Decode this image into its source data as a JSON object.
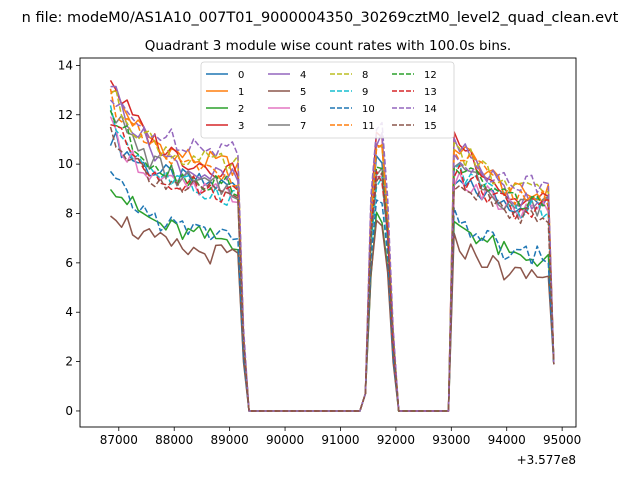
{
  "figure": {
    "suptitle": "n file: modeM0/AS1A10_007T01_9000004350_30269cztM0_level2_quad_clean.evt",
    "offset_label": "+3.577e8"
  },
  "chart_data": {
    "type": "line",
    "title": "Quadrant 3 module wise count rates with 100.0s bins.",
    "xlabel": "",
    "ylabel": "",
    "x_offset": 357700000,
    "xlim": [
      86300,
      95250
    ],
    "ylim": [
      -0.65,
      14.3
    ],
    "xticks": [
      87000,
      88000,
      89000,
      90000,
      91000,
      92000,
      93000,
      94000,
      95000
    ],
    "xtick_labels": [
      "87000",
      "88000",
      "89000",
      "90000",
      "91000",
      "92000",
      "93000",
      "94000",
      "95000"
    ],
    "yticks": [
      0,
      2,
      4,
      6,
      8,
      10,
      12,
      14
    ],
    "ytick_labels": [
      "0",
      "2",
      "4",
      "6",
      "8",
      "10",
      "12",
      "14"
    ],
    "legend": {
      "placement": "top-center",
      "columns": 4
    },
    "segments": [
      {
        "x_start": 86850,
        "x_end": 89150,
        "step": 100
      },
      {
        "x_start": 89250,
        "x_end": 89350,
        "step": 100
      },
      {
        "x_start": 89350,
        "x_end": 91350,
        "step": 2000,
        "flat": 0
      },
      {
        "x_start": 91350,
        "x_end": 91450,
        "step": 100
      },
      {
        "x_start": 91550,
        "x_end": 91850,
        "step": 100
      },
      {
        "x_start": 91950,
        "x_end": 92050,
        "step": 100
      },
      {
        "x_start": 92050,
        "x_end": 92950,
        "step": 900,
        "flat": 0
      },
      {
        "x_start": 93050,
        "x_end": 94750,
        "step": 100
      },
      {
        "x_start": 94850,
        "x_end": 94850,
        "step": 100
      }
    ],
    "series": [
      {
        "name": "0",
        "color": "#1f77b4",
        "dashed": false,
        "base": 9.0,
        "start": 11.2,
        "r2": 9.3,
        "end": 8.4,
        "p": 10.6
      },
      {
        "name": "1",
        "color": "#ff7f0e",
        "dashed": false,
        "base": 9.8,
        "start": 13.2,
        "r2": 10.3,
        "end": 8.8,
        "p": 11.2
      },
      {
        "name": "2",
        "color": "#2ca02c",
        "dashed": false,
        "base": 6.8,
        "start": 9.4,
        "r2": 6.6,
        "end": 6.2,
        "p": 8.3
      },
      {
        "name": "3",
        "color": "#d62728",
        "dashed": false,
        "base": 9.6,
        "start": 13.6,
        "r2": 10.4,
        "end": 8.5,
        "p": 11.5
      },
      {
        "name": "4",
        "color": "#9467bd",
        "dashed": false,
        "base": 9.2,
        "start": 13.4,
        "r2": 9.6,
        "end": 8.6,
        "p": 11.3
      },
      {
        "name": "5",
        "color": "#8c564b",
        "dashed": false,
        "base": 6.2,
        "start": 8.3,
        "r2": 6.0,
        "end": 5.5,
        "p": 7.7
      },
      {
        "name": "6",
        "color": "#e377c2",
        "dashed": false,
        "base": 8.6,
        "start": 11.5,
        "r2": 9.0,
        "end": 8.1,
        "p": 9.8
      },
      {
        "name": "7",
        "color": "#7f7f7f",
        "dashed": false,
        "base": 8.8,
        "start": 12.5,
        "r2": 9.2,
        "end": 8.3,
        "p": 10.2
      },
      {
        "name": "8",
        "color": "#bcbd22",
        "dashed": true,
        "base": 9.8,
        "start": 13.0,
        "r2": 10.3,
        "end": 8.9,
        "p": 11.2
      },
      {
        "name": "9",
        "color": "#17becf",
        "dashed": true,
        "base": 8.6,
        "start": 12.0,
        "r2": 9.0,
        "end": 8.2,
        "p": 9.6
      },
      {
        "name": "10",
        "color": "#1f77b4",
        "dashed": true,
        "base": 7.0,
        "start": 9.5,
        "r2": 6.8,
        "end": 6.3,
        "p": 8.6
      },
      {
        "name": "11",
        "color": "#ff7f0e",
        "dashed": true,
        "base": 9.4,
        "start": 12.8,
        "r2": 9.9,
        "end": 8.7,
        "p": 10.8
      },
      {
        "name": "12",
        "color": "#2ca02c",
        "dashed": true,
        "base": 9.0,
        "start": 12.2,
        "r2": 9.5,
        "end": 8.5,
        "p": 10.4
      },
      {
        "name": "13",
        "color": "#d62728",
        "dashed": true,
        "base": 8.7,
        "start": 11.8,
        "r2": 9.2,
        "end": 8.2,
        "p": 10.0
      },
      {
        "name": "14",
        "color": "#9467bd",
        "dashed": true,
        "base": 10.6,
        "start": 12.6,
        "r2": 11.0,
        "end": 9.2,
        "p": 12.3
      },
      {
        "name": "15",
        "color": "#8c564b",
        "dashed": true,
        "base": 8.6,
        "start": 11.4,
        "r2": 9.0,
        "end": 8.0,
        "p": 9.8
      }
    ]
  }
}
